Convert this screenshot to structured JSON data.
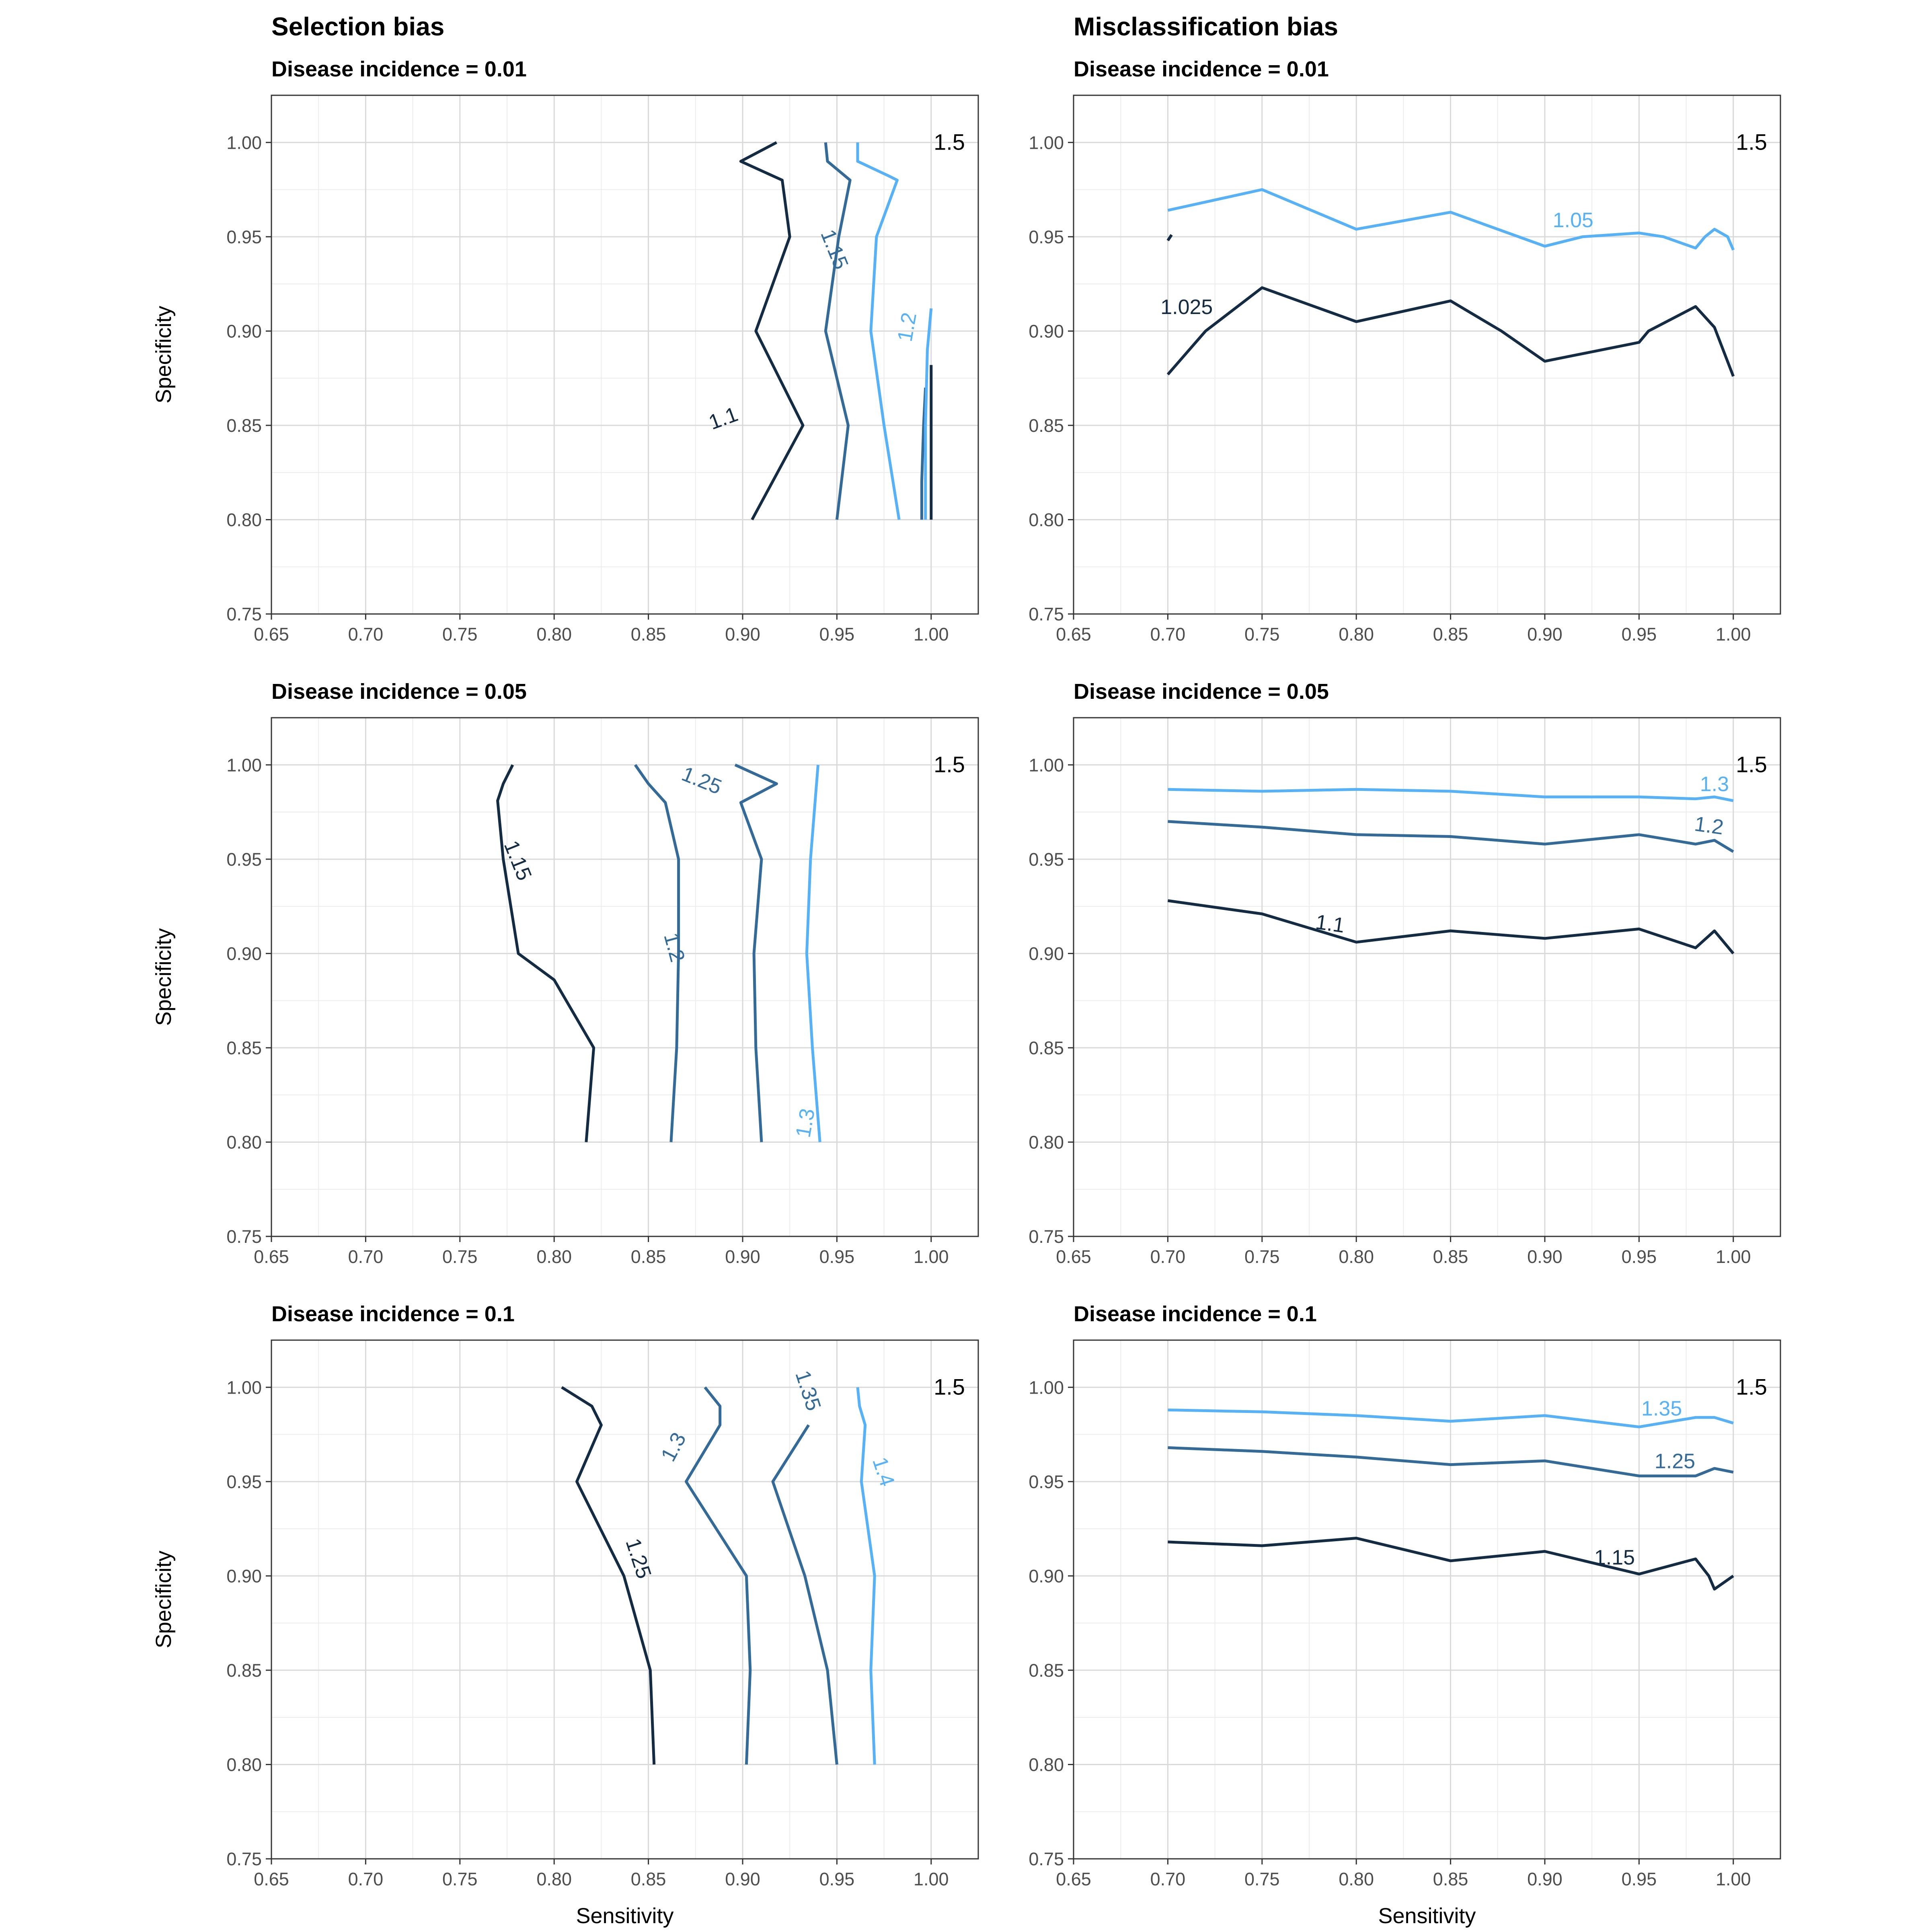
{
  "columns": [
    {
      "title": "Selection bias"
    },
    {
      "title": "Misclassification bias"
    }
  ],
  "axis_labels": {
    "x": "Sensitivity",
    "y": "Specificity"
  },
  "colors": {
    "level_1": "#132b43",
    "level_2": "#336a98",
    "level_3": "#56b1f7",
    "grid": "#d9d9d9",
    "panel_border": "#333333"
  },
  "chart_data": [
    {
      "type": "line",
      "column": "Selection bias",
      "title": "Disease incidence = 0.01",
      "xlabel": "",
      "ylabel": "Specificity",
      "xlim": [
        0.65,
        1.025
      ],
      "ylim": [
        0.75,
        1.025
      ],
      "x_ticks": [
        "0.65",
        "0.70",
        "0.75",
        "0.80",
        "0.85",
        "0.90",
        "0.95",
        "1.00"
      ],
      "y_ticks": [
        "0.75",
        "0.80",
        "0.85",
        "0.90",
        "0.95",
        "1.00"
      ],
      "corner_label": "1.5",
      "grid": true,
      "series": [
        {
          "name": "1.1",
          "level": 1,
          "label_at": [
            0.89,
            0.853
          ],
          "label_angle": -20,
          "points": [
            [
              0.918,
              1.0
            ],
            [
              0.899,
              0.99
            ],
            [
              0.921,
              0.98
            ],
            [
              0.925,
              0.95
            ],
            [
              0.907,
              0.9
            ],
            [
              0.932,
              0.85
            ],
            [
              0.905,
              0.8
            ]
          ]
        },
        {
          "name": "1.15",
          "level": 2,
          "label_at": [
            0.948,
            0.943
          ],
          "label_angle": 68,
          "points": [
            [
              0.944,
              1.0
            ],
            [
              0.945,
              0.99
            ],
            [
              0.957,
              0.98
            ],
            [
              0.951,
              0.95
            ],
            [
              0.944,
              0.9
            ],
            [
              0.956,
              0.85
            ],
            [
              0.95,
              0.8
            ]
          ]
        },
        {
          "name": "1.2",
          "level": 3,
          "label_at": [
            0.988,
            0.902
          ],
          "label_angle": -80,
          "points": [
            [
              0.961,
              1.0
            ],
            [
              0.961,
              0.99
            ],
            [
              0.978,
              0.982
            ],
            [
              0.982,
              0.98
            ],
            [
              0.971,
              0.95
            ],
            [
              0.968,
              0.9
            ],
            [
              0.975,
              0.85
            ],
            [
              0.983,
              0.8
            ]
          ]
        },
        {
          "name": "",
          "level": 2,
          "points": [
            [
              0.997,
              0.87
            ],
            [
              0.996,
              0.85
            ],
            [
              0.995,
              0.82
            ],
            [
              0.995,
              0.8
            ]
          ]
        },
        {
          "name": "",
          "level": 3,
          "points": [
            [
              1.0,
              0.912
            ],
            [
              0.998,
              0.89
            ],
            [
              0.997,
              0.85
            ],
            [
              0.997,
              0.8
            ]
          ]
        },
        {
          "name": "",
          "level": 1,
          "points": [
            [
              1.0,
              0.882
            ],
            [
              1.0,
              0.86
            ],
            [
              1.0,
              0.85
            ],
            [
              1.0,
              0.823
            ],
            [
              1.0,
              0.8
            ]
          ]
        }
      ]
    },
    {
      "type": "line",
      "column": "Misclassification bias",
      "title": "Disease incidence = 0.01",
      "xlabel": "",
      "ylabel": "",
      "xlim": [
        0.65,
        1.025
      ],
      "ylim": [
        0.75,
        1.025
      ],
      "x_ticks": [
        "0.65",
        "0.70",
        "0.75",
        "0.80",
        "0.85",
        "0.90",
        "0.95",
        "1.00"
      ],
      "y_ticks": [
        "0.75",
        "0.80",
        "0.85",
        "0.90",
        "0.95",
        "1.00"
      ],
      "corner_label": "1.5",
      "grid": true,
      "series": [
        {
          "name": "1.025",
          "level": 1,
          "label_at": [
            0.71,
            0.912
          ],
          "label_angle": 0,
          "points": [
            [
              0.7,
              0.877
            ],
            [
              0.72,
              0.9
            ],
            [
              0.75,
              0.923
            ],
            [
              0.8,
              0.905
            ],
            [
              0.85,
              0.916
            ],
            [
              0.877,
              0.9
            ],
            [
              0.9,
              0.884
            ],
            [
              0.95,
              0.894
            ],
            [
              0.955,
              0.9
            ],
            [
              0.98,
              0.913
            ],
            [
              0.99,
              0.902
            ],
            [
              1.0,
              0.876
            ]
          ]
        },
        {
          "name": "",
          "level": 1,
          "points": [
            [
              0.7,
              0.948
            ],
            [
              0.702,
              0.951
            ]
          ]
        },
        {
          "name": "1.05",
          "level": 3,
          "label_at": [
            0.915,
            0.958
          ],
          "label_angle": 0,
          "points": [
            [
              0.7,
              0.964
            ],
            [
              0.75,
              0.975
            ],
            [
              0.8,
              0.954
            ],
            [
              0.85,
              0.963
            ],
            [
              0.9,
              0.945
            ],
            [
              0.92,
              0.95
            ],
            [
              0.95,
              0.952
            ],
            [
              0.963,
              0.95
            ],
            [
              0.98,
              0.944
            ],
            [
              0.985,
              0.95
            ],
            [
              0.99,
              0.954
            ],
            [
              0.997,
              0.95
            ],
            [
              1.0,
              0.943
            ]
          ]
        }
      ]
    },
    {
      "type": "line",
      "column": "Selection bias",
      "title": "Disease incidence = 0.05",
      "xlabel": "",
      "ylabel": "Specificity",
      "xlim": [
        0.65,
        1.025
      ],
      "ylim": [
        0.75,
        1.025
      ],
      "x_ticks": [
        "0.65",
        "0.70",
        "0.75",
        "0.80",
        "0.85",
        "0.90",
        "0.95",
        "1.00"
      ],
      "y_ticks": [
        "0.75",
        "0.80",
        "0.85",
        "0.90",
        "0.95",
        "1.00"
      ],
      "corner_label": "1.5",
      "grid": true,
      "series": [
        {
          "name": "1.15",
          "level": 1,
          "label_at": [
            0.78,
            0.949
          ],
          "label_angle": 68,
          "points": [
            [
              0.778,
              1.0
            ],
            [
              0.773,
              0.99
            ],
            [
              0.77,
              0.981
            ],
            [
              0.773,
              0.95
            ],
            [
              0.781,
              0.9
            ],
            [
              0.8,
              0.886
            ],
            [
              0.821,
              0.85
            ],
            [
              0.817,
              0.8
            ]
          ]
        },
        {
          "name": "1.2",
          "level": 2,
          "label_at": [
            0.863,
            0.903
          ],
          "label_angle": 75,
          "points": [
            [
              0.843,
              1.0
            ],
            [
              0.85,
              0.99
            ],
            [
              0.859,
              0.98
            ],
            [
              0.866,
              0.95
            ],
            [
              0.866,
              0.9
            ],
            [
              0.865,
              0.85
            ],
            [
              0.862,
              0.8
            ]
          ]
        },
        {
          "name": "1.25",
          "level": 2,
          "label_at": [
            0.878,
            0.991
          ],
          "label_angle": 22,
          "points": [
            [
              0.896,
              1.0
            ],
            [
              0.918,
              0.99
            ],
            [
              0.899,
              0.98
            ],
            [
              0.91,
              0.95
            ],
            [
              0.906,
              0.9
            ],
            [
              0.907,
              0.85
            ],
            [
              0.91,
              0.8
            ]
          ]
        },
        {
          "name": "1.3",
          "level": 3,
          "label_at": [
            0.934,
            0.81
          ],
          "label_angle": -80,
          "points": [
            [
              0.94,
              1.0
            ],
            [
              0.936,
              0.95
            ],
            [
              0.934,
              0.9
            ],
            [
              0.937,
              0.85
            ],
            [
              0.941,
              0.8
            ]
          ]
        }
      ]
    },
    {
      "type": "line",
      "column": "Misclassification bias",
      "title": "Disease incidence = 0.05",
      "xlabel": "",
      "ylabel": "",
      "xlim": [
        0.65,
        1.025
      ],
      "ylim": [
        0.75,
        1.025
      ],
      "x_ticks": [
        "0.65",
        "0.70",
        "0.75",
        "0.80",
        "0.85",
        "0.90",
        "0.95",
        "1.00"
      ],
      "y_ticks": [
        "0.75",
        "0.80",
        "0.85",
        "0.90",
        "0.95",
        "1.00"
      ],
      "corner_label": "1.5",
      "grid": true,
      "series": [
        {
          "name": "1.1",
          "level": 1,
          "label_at": [
            0.786,
            0.915
          ],
          "label_angle": 8,
          "points": [
            [
              0.7,
              0.928
            ],
            [
              0.75,
              0.921
            ],
            [
              0.8,
              0.906
            ],
            [
              0.85,
              0.912
            ],
            [
              0.9,
              0.908
            ],
            [
              0.95,
              0.913
            ],
            [
              0.98,
              0.903
            ],
            [
              0.99,
              0.912
            ],
            [
              1.0,
              0.9
            ]
          ]
        },
        {
          "name": "1.2",
          "level": 2,
          "label_at": [
            0.987,
            0.967
          ],
          "label_angle": 8,
          "points": [
            [
              0.7,
              0.97
            ],
            [
              0.75,
              0.967
            ],
            [
              0.8,
              0.963
            ],
            [
              0.85,
              0.962
            ],
            [
              0.9,
              0.958
            ],
            [
              0.95,
              0.963
            ],
            [
              0.98,
              0.958
            ],
            [
              0.99,
              0.96
            ],
            [
              1.0,
              0.954
            ]
          ]
        },
        {
          "name": "1.3",
          "level": 3,
          "label_at": [
            0.99,
            0.989
          ],
          "label_angle": 0,
          "points": [
            [
              0.7,
              0.987
            ],
            [
              0.75,
              0.986
            ],
            [
              0.8,
              0.987
            ],
            [
              0.85,
              0.986
            ],
            [
              0.9,
              0.983
            ],
            [
              0.95,
              0.983
            ],
            [
              0.98,
              0.982
            ],
            [
              0.99,
              0.983
            ],
            [
              1.0,
              0.981
            ]
          ]
        }
      ]
    },
    {
      "type": "line",
      "column": "Selection bias",
      "title": "Disease incidence = 0.1",
      "xlabel": "Sensitivity",
      "ylabel": "Specificity",
      "xlim": [
        0.65,
        1.025
      ],
      "ylim": [
        0.75,
        1.025
      ],
      "x_ticks": [
        "0.65",
        "0.70",
        "0.75",
        "0.80",
        "0.85",
        "0.90",
        "0.95",
        "1.00"
      ],
      "y_ticks": [
        "0.75",
        "0.80",
        "0.85",
        "0.90",
        "0.95",
        "1.00"
      ],
      "corner_label": "1.5",
      "grid": true,
      "series": [
        {
          "name": "1.25",
          "level": 1,
          "label_at": [
            0.844,
            0.909
          ],
          "label_angle": 72,
          "points": [
            [
              0.804,
              1.0
            ],
            [
              0.82,
              0.99
            ],
            [
              0.825,
              0.98
            ],
            [
              0.812,
              0.95
            ],
            [
              0.837,
              0.9
            ],
            [
              0.851,
              0.85
            ],
            [
              0.853,
              0.8
            ]
          ]
        },
        {
          "name": "1.3",
          "level": 2,
          "label_at": [
            0.864,
            0.968
          ],
          "label_angle": -62,
          "points": [
            [
              0.88,
              1.0
            ],
            [
              0.888,
              0.99
            ],
            [
              0.888,
              0.98
            ],
            [
              0.87,
              0.95
            ],
            [
              0.902,
              0.9
            ],
            [
              0.904,
              0.85
            ],
            [
              0.902,
              0.8
            ]
          ]
        },
        {
          "name": "1.35",
          "level": 2,
          "label_at": [
            0.934,
            0.998
          ],
          "label_angle": 72,
          "points": [
            [
              0.935,
              0.98
            ],
            [
              0.916,
              0.95
            ],
            [
              0.933,
              0.9
            ],
            [
              0.945,
              0.85
            ],
            [
              0.95,
              0.8
            ]
          ]
        },
        {
          "name": "1.4",
          "level": 3,
          "label_at": [
            0.974,
            0.955
          ],
          "label_angle": 72,
          "points": [
            [
              0.961,
              1.0
            ],
            [
              0.962,
              0.99
            ],
            [
              0.965,
              0.98
            ],
            [
              0.963,
              0.95
            ],
            [
              0.97,
              0.9
            ],
            [
              0.968,
              0.85
            ],
            [
              0.97,
              0.8
            ]
          ]
        }
      ]
    },
    {
      "type": "line",
      "column": "Misclassification bias",
      "title": "Disease incidence = 0.1",
      "xlabel": "Sensitivity",
      "ylabel": "",
      "xlim": [
        0.65,
        1.025
      ],
      "ylim": [
        0.75,
        1.025
      ],
      "x_ticks": [
        "0.65",
        "0.70",
        "0.75",
        "0.80",
        "0.85",
        "0.90",
        "0.95",
        "1.00"
      ],
      "y_ticks": [
        "0.75",
        "0.80",
        "0.85",
        "0.90",
        "0.95",
        "1.00"
      ],
      "corner_label": "1.5",
      "grid": true,
      "series": [
        {
          "name": "1.15",
          "level": 1,
          "label_at": [
            0.937,
            0.909
          ],
          "label_angle": 0,
          "points": [
            [
              0.7,
              0.918
            ],
            [
              0.75,
              0.916
            ],
            [
              0.8,
              0.92
            ],
            [
              0.85,
              0.908
            ],
            [
              0.9,
              0.913
            ],
            [
              0.95,
              0.901
            ],
            [
              0.98,
              0.909
            ],
            [
              0.987,
              0.9
            ],
            [
              0.99,
              0.893
            ],
            [
              1.0,
              0.9
            ]
          ]
        },
        {
          "name": "1.25",
          "level": 2,
          "label_at": [
            0.969,
            0.96
          ],
          "label_angle": 0,
          "points": [
            [
              0.7,
              0.968
            ],
            [
              0.75,
              0.966
            ],
            [
              0.8,
              0.963
            ],
            [
              0.85,
              0.959
            ],
            [
              0.9,
              0.961
            ],
            [
              0.95,
              0.953
            ],
            [
              0.98,
              0.953
            ],
            [
              0.99,
              0.957
            ],
            [
              1.0,
              0.955
            ]
          ]
        },
        {
          "name": "1.35",
          "level": 3,
          "label_at": [
            0.962,
            0.988
          ],
          "label_angle": 0,
          "points": [
            [
              0.7,
              0.988
            ],
            [
              0.75,
              0.987
            ],
            [
              0.8,
              0.985
            ],
            [
              0.85,
              0.982
            ],
            [
              0.9,
              0.985
            ],
            [
              0.95,
              0.979
            ],
            [
              0.98,
              0.984
            ],
            [
              0.99,
              0.984
            ],
            [
              1.0,
              0.981
            ]
          ]
        }
      ]
    }
  ]
}
